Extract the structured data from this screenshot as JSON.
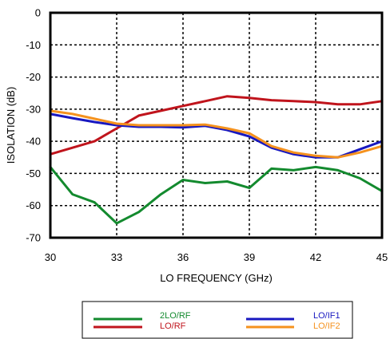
{
  "chart_data": {
    "type": "line",
    "title": "",
    "xlabel": "LO FREQUENCY (GHz)",
    "ylabel": "ISOLATION (dB)",
    "xlim": [
      30,
      45
    ],
    "ylim": [
      -70,
      0
    ],
    "xticks": [
      "30",
      "33",
      "36",
      "39",
      "42",
      "45"
    ],
    "yticks": [
      "0",
      "-10",
      "-20",
      "-30",
      "-40",
      "-50",
      "-60",
      "-70"
    ],
    "grid": true,
    "legend_position": "bottom",
    "x": [
      30,
      31,
      32,
      33,
      34,
      35,
      36,
      37,
      38,
      39,
      40,
      41,
      42,
      43,
      44,
      45
    ],
    "series": [
      {
        "name": "2LO/RF",
        "color": "#138a2e",
        "values": [
          -48,
          -56.5,
          -59,
          -65.5,
          -62,
          -56.5,
          -52,
          -53,
          -52.5,
          -54.5,
          -48.5,
          -49,
          -48,
          -49,
          -51.5,
          -55.5
        ]
      },
      {
        "name": "LO/RF",
        "color": "#c0141c",
        "values": [
          -44,
          -42,
          -40,
          -36,
          -32,
          -30.5,
          -29,
          -27.5,
          -26,
          -26.5,
          -27.2,
          -27.5,
          -27.8,
          -28.5,
          -28.5,
          -27.5
        ]
      },
      {
        "name": "LO/IF1",
        "color": "#1818c0",
        "values": [
          -31.5,
          -32.8,
          -34,
          -35,
          -35.5,
          -35.5,
          -35.7,
          -35.2,
          -36.5,
          -38.5,
          -42,
          -44,
          -45,
          -45,
          -42.5,
          -40
        ]
      },
      {
        "name": "LO/IF2",
        "color": "#f5921e",
        "values": [
          -30.5,
          -31.5,
          -33,
          -34.5,
          -35,
          -35,
          -35,
          -34.8,
          -36,
          -37.5,
          -41.5,
          -43.5,
          -44.5,
          -45,
          -43.5,
          -41.5
        ]
      }
    ]
  }
}
